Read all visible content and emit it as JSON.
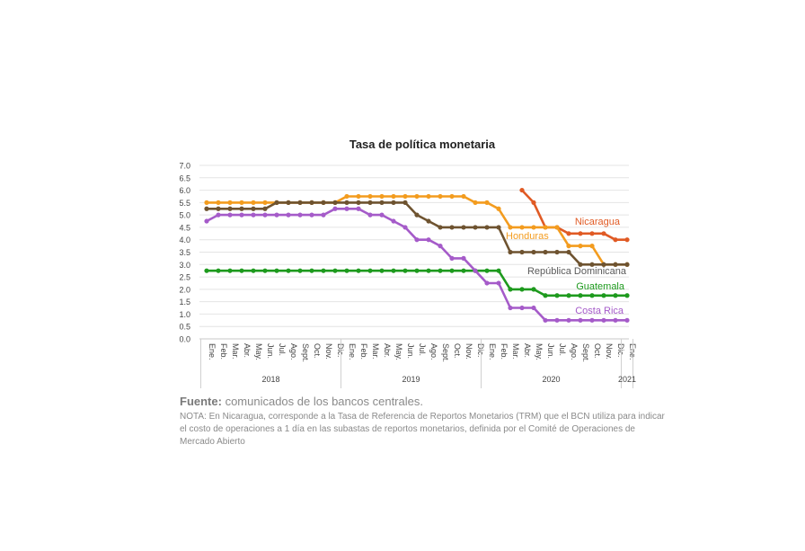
{
  "chart_data": {
    "type": "line",
    "title": "Tasa de política monetaria",
    "ylim": [
      0,
      7
    ],
    "yticks": [
      "0.0",
      "0.5",
      "1.0",
      "1.5",
      "2.0",
      "2.5",
      "3.0",
      "3.5",
      "4.0",
      "4.5",
      "5.0",
      "5.5",
      "6.0",
      "6.5",
      "7.0"
    ],
    "x": [
      "Ene.",
      "Feb.",
      "Mar.",
      "Abr.",
      "May.",
      "Jun.",
      "Jul.",
      "Ago.",
      "Sept.",
      "Oct.",
      "Nov.",
      "Dic.",
      "Ene.",
      "Feb.",
      "Mar.",
      "Abr.",
      "May.",
      "Jun.",
      "Jul.",
      "Ago.",
      "Sept.",
      "Oct.",
      "Nov.",
      "Dic.",
      "Ene.",
      "Feb.",
      "Mar.",
      "Abr.",
      "May.",
      "Jun.",
      "Jul.",
      "Ago.",
      "Sept.",
      "Oct.",
      "Nov.",
      "Dic.",
      "Ene."
    ],
    "year_groups": [
      {
        "label": "2018",
        "start": 0,
        "end": 11
      },
      {
        "label": "2019",
        "start": 12,
        "end": 23
      },
      {
        "label": "2020",
        "start": 24,
        "end": 35
      },
      {
        "label": "2021",
        "start": 36,
        "end": 36
      }
    ],
    "grid": true,
    "legend": "inline labels at right",
    "series": [
      {
        "name": "Nicaragua",
        "color": "#e05a24",
        "values": [
          null,
          null,
          null,
          null,
          null,
          null,
          null,
          null,
          null,
          null,
          null,
          null,
          null,
          null,
          null,
          null,
          null,
          null,
          null,
          null,
          null,
          null,
          null,
          null,
          null,
          null,
          null,
          6.0,
          5.5,
          4.5,
          4.5,
          4.25,
          4.25,
          4.25,
          4.25,
          4.0,
          4.0
        ]
      },
      {
        "name": "Honduras",
        "color": "#f39c1f",
        "values": [
          5.5,
          5.5,
          5.5,
          5.5,
          5.5,
          5.5,
          5.5,
          5.5,
          5.5,
          5.5,
          5.5,
          5.5,
          5.75,
          5.75,
          5.75,
          5.75,
          5.75,
          5.75,
          5.75,
          5.75,
          5.75,
          5.75,
          5.75,
          5.5,
          5.5,
          5.25,
          4.5,
          4.5,
          4.5,
          4.5,
          4.5,
          3.75,
          3.75,
          3.75,
          3.0,
          3.0,
          3.0
        ]
      },
      {
        "name": "República Dominicana",
        "color": "#6e5330",
        "values": [
          5.25,
          5.25,
          5.25,
          5.25,
          5.25,
          5.25,
          5.5,
          5.5,
          5.5,
          5.5,
          5.5,
          5.5,
          5.5,
          5.5,
          5.5,
          5.5,
          5.5,
          5.5,
          5.0,
          4.75,
          4.5,
          4.5,
          4.5,
          4.5,
          4.5,
          4.5,
          3.5,
          3.5,
          3.5,
          3.5,
          3.5,
          3.5,
          3.0,
          3.0,
          3.0,
          3.0,
          3.0
        ]
      },
      {
        "name": "Guatemala",
        "color": "#1e9a1e",
        "values": [
          2.75,
          2.75,
          2.75,
          2.75,
          2.75,
          2.75,
          2.75,
          2.75,
          2.75,
          2.75,
          2.75,
          2.75,
          2.75,
          2.75,
          2.75,
          2.75,
          2.75,
          2.75,
          2.75,
          2.75,
          2.75,
          2.75,
          2.75,
          2.75,
          2.75,
          2.75,
          2.0,
          2.0,
          2.0,
          1.75,
          1.75,
          1.75,
          1.75,
          1.75,
          1.75,
          1.75,
          1.75
        ]
      },
      {
        "name": "Costa Rica",
        "color": "#a55bc9",
        "values": [
          4.75,
          5.0,
          5.0,
          5.0,
          5.0,
          5.0,
          5.0,
          5.0,
          5.0,
          5.0,
          5.0,
          5.25,
          5.25,
          5.25,
          5.0,
          5.0,
          4.75,
          4.5,
          4.0,
          4.0,
          3.75,
          3.25,
          3.25,
          2.75,
          2.25,
          2.25,
          1.25,
          1.25,
          1.25,
          0.75,
          0.75,
          0.75,
          0.75,
          0.75,
          0.75,
          0.75,
          0.75
        ]
      }
    ]
  },
  "footer": {
    "source_label": "Fuente:",
    "source_text": " comunicados de los bancos centrales.",
    "note": "NOTA: En Nicaragua, corresponde a la Tasa de Referencia de Reportos Monetarios (TRM) que el BCN utiliza para indicar el costo de operaciones a 1 día en las subastas de reportos monetarios, definida por el Comité de Operaciones de Mercado Abierto"
  }
}
